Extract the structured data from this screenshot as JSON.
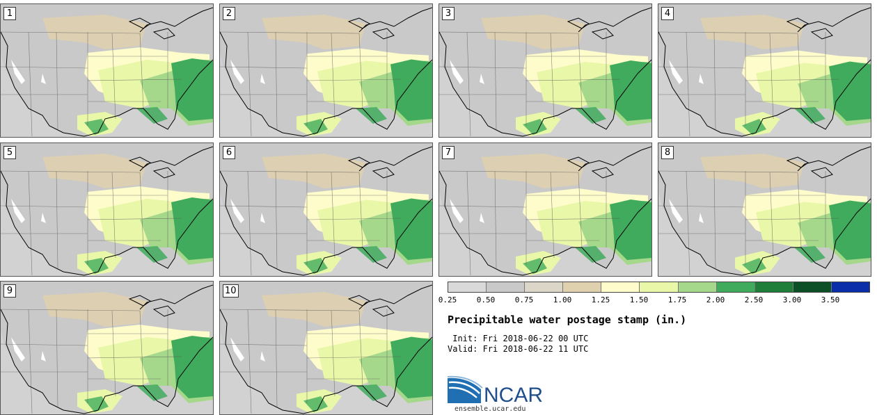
{
  "figure": {
    "title": "Precipitable water postage stamp (in.)",
    "init": " Init: Fri 2018-06-22 00 UTC",
    "valid": "Valid: Fri 2018-06-22 11 UTC"
  },
  "members": [
    {
      "label": "1"
    },
    {
      "label": "2"
    },
    {
      "label": "3"
    },
    {
      "label": "4"
    },
    {
      "label": "5"
    },
    {
      "label": "6"
    },
    {
      "label": "7"
    },
    {
      "label": "8"
    },
    {
      "label": "9"
    },
    {
      "label": "10"
    }
  ],
  "colorbar": {
    "tick_labels": [
      "0.25",
      "0.50",
      "0.75",
      "1.00",
      "1.25",
      "1.50",
      "1.75",
      "2.00",
      "2.50",
      "3.00",
      "3.50"
    ],
    "colors": [
      "#d9d9d9",
      "#c9c9c9",
      "#dcd6c8",
      "#e0d1ae",
      "#fffccc",
      "#e9f7a8",
      "#a6d88c",
      "#41ab5d",
      "#1e7e3a",
      "#0d4f26",
      "#0a2eaa"
    ]
  },
  "branding": {
    "logo_text": "NCAR",
    "url": "ensemble.ucar.edu"
  },
  "map_colors": {
    "water": "#d2d2d2",
    "dry_gray": "#c9c9c9",
    "tan": "#e0d1ae",
    "pale_yellow": "#fffccc",
    "light_green": "#e9f7a8",
    "mid_green": "#a6d88c",
    "green": "#41ab5d",
    "white": "#ffffff"
  }
}
